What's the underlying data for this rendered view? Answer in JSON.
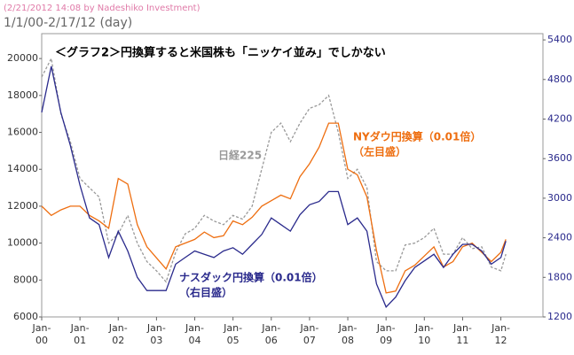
{
  "header": {
    "stamp": "(2/21/2012 14:08 by Nadeshiko Investment)",
    "range": "1/1/00-2/17/12 (day)"
  },
  "chart_data": {
    "type": "line",
    "title": "＜グラフ2＞円換算すると米国株も「ニッケイ並み」でしかない",
    "x": [
      2000,
      2000.25,
      2000.5,
      2000.75,
      2001,
      2001.25,
      2001.5,
      2001.75,
      2002,
      2002.25,
      2002.5,
      2002.75,
      2003,
      2003.25,
      2003.5,
      2003.75,
      2004,
      2004.25,
      2004.5,
      2004.75,
      2005,
      2005.25,
      2005.5,
      2005.75,
      2006,
      2006.25,
      2006.5,
      2006.75,
      2007,
      2007.25,
      2007.5,
      2007.75,
      2008,
      2008.25,
      2008.5,
      2008.75,
      2009,
      2009.25,
      2009.5,
      2009.75,
      2010,
      2010.25,
      2010.5,
      2010.75,
      2011,
      2011.25,
      2011.5,
      2011.75,
      2012,
      2012.13
    ],
    "xlim": [
      2000,
      2013.1
    ],
    "xticks": [
      {
        "value": 2000,
        "label": "Jan-00"
      },
      {
        "value": 2001,
        "label": "Jan-01"
      },
      {
        "value": 2002,
        "label": "Jan-02"
      },
      {
        "value": 2003,
        "label": "Jan-03"
      },
      {
        "value": 2004,
        "label": "Jan-04"
      },
      {
        "value": 2005,
        "label": "Jan-05"
      },
      {
        "value": 2006,
        "label": "Jan-06"
      },
      {
        "value": 2007,
        "label": "Jan-07"
      },
      {
        "value": 2008,
        "label": "Jan-08"
      },
      {
        "value": 2009,
        "label": "Jan-09"
      },
      {
        "value": 2010,
        "label": "Jan-10"
      },
      {
        "value": 2011,
        "label": "Jan-11"
      },
      {
        "value": 2012,
        "label": "Jan-12"
      }
    ],
    "ylim": [
      6000,
      21350
    ],
    "yticks": [
      6000,
      8000,
      10000,
      12000,
      14000,
      16000,
      18000,
      20000
    ],
    "y2lim": [
      1200,
      5495
    ],
    "y2ticks": [
      1200,
      1800,
      2400,
      3000,
      3600,
      4200,
      4800,
      5400
    ],
    "series": [
      {
        "name": "日経225",
        "color": "#999999",
        "dash": true,
        "values": [
          19000,
          20000,
          17000,
          15500,
          13500,
          13000,
          12500,
          10000,
          10500,
          11500,
          10000,
          9000,
          8500,
          7900,
          9500,
          10500,
          10800,
          11500,
          11200,
          11000,
          11500,
          11300,
          12000,
          14000,
          16000,
          16500,
          15500,
          16500,
          17300,
          17500,
          18000,
          16000,
          13500,
          14000,
          13000,
          9000,
          8500,
          8500,
          9900,
          10000,
          10300,
          10800,
          9400,
          9400,
          10300,
          9700,
          9800,
          8700,
          8500,
          9400
        ]
      },
      {
        "name": "NYダウ円換算（0.01倍）",
        "color": "#ee6e10",
        "values": [
          12000,
          11500,
          11800,
          12000,
          12000,
          11500,
          11200,
          10800,
          13500,
          13200,
          11000,
          9800,
          9200,
          8600,
          9800,
          10000,
          10200,
          10600,
          10300,
          10400,
          11200,
          11000,
          11400,
          12000,
          12300,
          12600,
          12400,
          13600,
          14300,
          15200,
          16500,
          16500,
          14000,
          13700,
          12500,
          9600,
          7300,
          7400,
          8500,
          8800,
          9300,
          9800,
          8700,
          9000,
          9800,
          10000,
          9500,
          9000,
          9500,
          10200
        ]
      },
      {
        "name": "ナスダック円換算（0.01倍）",
        "color": "#2a2a8c",
        "axis": "y2",
        "values": [
          4300,
          5000,
          4300,
          3800,
          3200,
          2700,
          2600,
          2100,
          2500,
          2200,
          1800,
          1600,
          1600,
          1600,
          2000,
          2100,
          2200,
          2150,
          2100,
          2200,
          2250,
          2150,
          2300,
          2450,
          2700,
          2600,
          2500,
          2750,
          2900,
          2950,
          3100,
          3100,
          2600,
          2700,
          2500,
          1700,
          1350,
          1500,
          1750,
          1950,
          2050,
          2150,
          1950,
          2150,
          2300,
          2300,
          2200,
          2000,
          2100,
          2350
        ]
      }
    ],
    "annotations": [
      "（左目盛）",
      "（右目盛）"
    ]
  }
}
